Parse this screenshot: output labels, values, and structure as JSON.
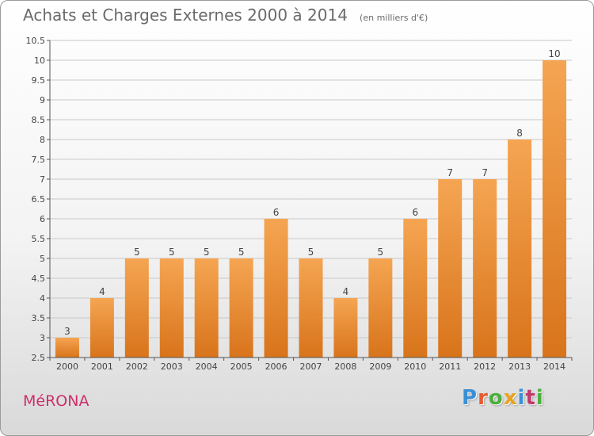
{
  "header": {
    "title": "Achats et Charges Externes 2000 à 2014",
    "unit": "(en milliers d'€)"
  },
  "footer": {
    "town": "MéRONA",
    "logo_text": "Proxiti",
    "logo_colors": [
      "#3a8fd6",
      "#e85b2c",
      "#4caf3b",
      "#e8a21f",
      "#3a8fd6",
      "#c0396b",
      "#4caf3b"
    ]
  },
  "colors": {
    "bar_top": "#f5a552",
    "bar_bottom": "#d8741b",
    "grid": "#c8c8c8",
    "axis_text": "#444444",
    "title": "#6a6a6a",
    "town": "#cc2f6b"
  },
  "chart_data": {
    "type": "bar",
    "title": "Achats et Charges Externes 2000 à 2014",
    "subtitle": "(en milliers d'€)",
    "categories": [
      "2000",
      "2001",
      "2002",
      "2003",
      "2004",
      "2005",
      "2006",
      "2007",
      "2008",
      "2009",
      "2010",
      "2011",
      "2012",
      "2013",
      "2014"
    ],
    "values": [
      3,
      4,
      5,
      5,
      5,
      5,
      6,
      5,
      4,
      5,
      6,
      7,
      7,
      8,
      10
    ],
    "data_labels": [
      "3",
      "4",
      "5",
      "5",
      "5",
      "5",
      "6",
      "5",
      "4",
      "5",
      "6",
      "7",
      "7",
      "8",
      "10"
    ],
    "ylim": [
      2.5,
      10.5
    ],
    "yticks": [
      "2.5",
      "3",
      "3.5",
      "4",
      "4.5",
      "5",
      "5.5",
      "6",
      "6.5",
      "7",
      "7.5",
      "8",
      "8.5",
      "9",
      "9.5",
      "10",
      "10.5"
    ],
    "grid": true,
    "legend": "none"
  }
}
